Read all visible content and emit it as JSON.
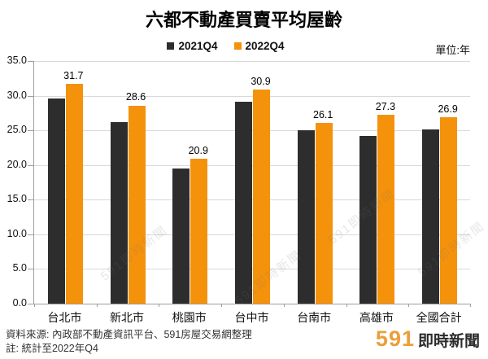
{
  "title": "六都不動產買賣平均屋齡",
  "unit_label": "單位:年",
  "legend": [
    {
      "label": "2021Q4",
      "color": "#2d2d2d"
    },
    {
      "label": "2022Q4",
      "color": "#f5920b"
    }
  ],
  "chart_data": {
    "type": "bar",
    "title": "六都不動產買賣平均屋齡",
    "unit": "年",
    "categories": [
      "台北市",
      "新北市",
      "桃園市",
      "台中市",
      "台南市",
      "高雄市",
      "全國合計"
    ],
    "series": [
      {
        "name": "2021Q4",
        "color": "#2d2d2d",
        "labels_visible": false,
        "values": [
          29.6,
          26.2,
          19.5,
          29.1,
          25.0,
          24.2,
          25.1
        ]
      },
      {
        "name": "2022Q4",
        "color": "#f5920b",
        "labels_visible": true,
        "values": [
          31.7,
          28.6,
          20.9,
          30.9,
          26.1,
          27.3,
          26.9
        ]
      }
    ],
    "ylim": [
      0,
      35
    ],
    "ytick_labels": [
      "35.0",
      "30.0",
      "25.0",
      "20.0",
      "15.0",
      "10.0",
      "5.0",
      "0.0"
    ],
    "grid": true,
    "legend_position": "top"
  },
  "watermark_text": "591即時新聞",
  "footer": {
    "source_line": "資料來源: 內政部不動產資訊平台、591房屋交易網整理",
    "note_line": "註: 統計至2022年Q4"
  },
  "logo": {
    "brand": "591",
    "suffix": "即時新聞"
  }
}
